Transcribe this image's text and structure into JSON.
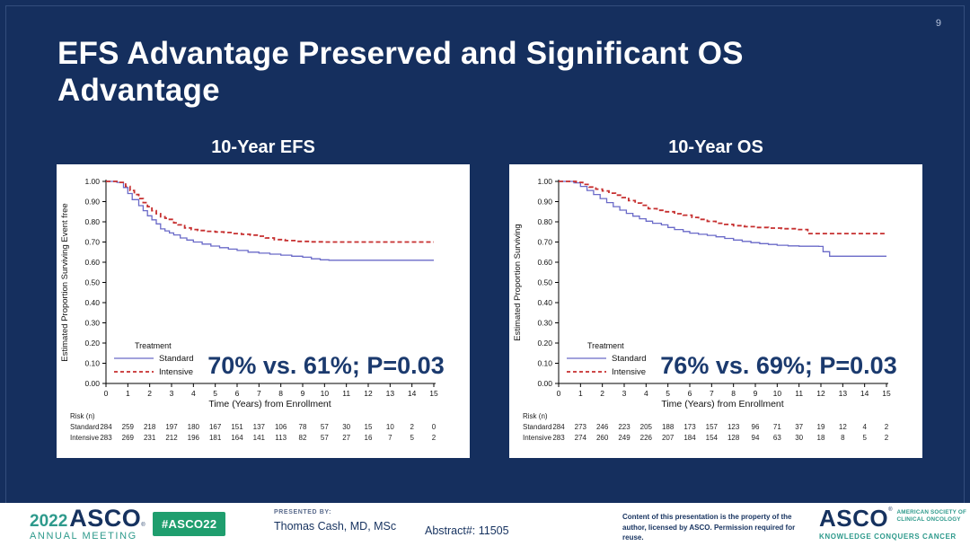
{
  "slide": {
    "title": "EFS Advantage Preserved and Significant OS Advantage",
    "page_number": "9"
  },
  "colors": {
    "background": "#152f5e",
    "navy_text": "#16325f",
    "annotation_navy": "#1b3a6e",
    "teal": "#2e9a8c",
    "badge_green": "#1f9e6e",
    "standard_blue": "#6a6ac8",
    "intensive_red": "#c62f2f"
  },
  "chart_data": [
    {
      "type": "line",
      "subtype": "kaplan-meier-step",
      "title": "10-Year EFS",
      "xlabel": "Time (Years) from Enrollment",
      "ylabel": "Estimated Proportion Surviving Event free",
      "xlim": [
        0,
        15
      ],
      "ylim": [
        0.0,
        1.0
      ],
      "xticks": [
        0,
        1,
        2,
        3,
        4,
        5,
        6,
        7,
        8,
        9,
        10,
        11,
        12,
        13,
        14,
        15
      ],
      "ytick_step": 0.1,
      "grid": false,
      "legend_title": "Treatment",
      "legend_position": "lower-left",
      "annotation": "70% vs. 61%; P=0.03",
      "series": [
        {
          "name": "Standard",
          "color": "#6a6ac8",
          "style": "solid",
          "points": [
            [
              0,
              1.0
            ],
            [
              0.5,
              0.995
            ],
            [
              0.8,
              0.97
            ],
            [
              1.0,
              0.94
            ],
            [
              1.2,
              0.91
            ],
            [
              1.5,
              0.88
            ],
            [
              1.7,
              0.855
            ],
            [
              1.9,
              0.83
            ],
            [
              2.1,
              0.81
            ],
            [
              2.3,
              0.79
            ],
            [
              2.5,
              0.765
            ],
            [
              2.7,
              0.755
            ],
            [
              2.9,
              0.745
            ],
            [
              3.1,
              0.735
            ],
            [
              3.4,
              0.72
            ],
            [
              3.7,
              0.71
            ],
            [
              4.0,
              0.7
            ],
            [
              4.4,
              0.69
            ],
            [
              4.8,
              0.68
            ],
            [
              5.2,
              0.672
            ],
            [
              5.6,
              0.665
            ],
            [
              6.0,
              0.658
            ],
            [
              6.5,
              0.65
            ],
            [
              7.0,
              0.645
            ],
            [
              7.5,
              0.64
            ],
            [
              8.0,
              0.635
            ],
            [
              8.5,
              0.63
            ],
            [
              9.0,
              0.625
            ],
            [
              9.4,
              0.617
            ],
            [
              9.8,
              0.612
            ],
            [
              10.2,
              0.61
            ],
            [
              15,
              0.61
            ]
          ]
        },
        {
          "name": "Intensive",
          "color": "#c62f2f",
          "style": "dashed",
          "points": [
            [
              0,
              1.0
            ],
            [
              0.6,
              0.995
            ],
            [
              0.9,
              0.975
            ],
            [
              1.1,
              0.955
            ],
            [
              1.3,
              0.935
            ],
            [
              1.5,
              0.915
            ],
            [
              1.7,
              0.895
            ],
            [
              1.9,
              0.875
            ],
            [
              2.1,
              0.855
            ],
            [
              2.3,
              0.84
            ],
            [
              2.5,
              0.825
            ],
            [
              2.7,
              0.818
            ],
            [
              2.9,
              0.812
            ],
            [
              3.1,
              0.795
            ],
            [
              3.3,
              0.785
            ],
            [
              3.6,
              0.77
            ],
            [
              3.9,
              0.762
            ],
            [
              4.2,
              0.757
            ],
            [
              4.6,
              0.753
            ],
            [
              5.0,
              0.75
            ],
            [
              5.4,
              0.747
            ],
            [
              5.8,
              0.742
            ],
            [
              6.2,
              0.738
            ],
            [
              6.6,
              0.734
            ],
            [
              7.0,
              0.729
            ],
            [
              7.3,
              0.72
            ],
            [
              7.7,
              0.712
            ],
            [
              8.2,
              0.707
            ],
            [
              8.8,
              0.703
            ],
            [
              9.4,
              0.701
            ],
            [
              10.0,
              0.7
            ],
            [
              15,
              0.7
            ]
          ]
        }
      ],
      "risk_table": {
        "label": "Risk (n)",
        "rows": [
          {
            "name": "Standard",
            "values": [
              284,
              259,
              218,
              197,
              180,
              167,
              151,
              137,
              106,
              78,
              57,
              30,
              15,
              10,
              2,
              0
            ]
          },
          {
            "name": "Intensive",
            "values": [
              283,
              269,
              231,
              212,
              196,
              181,
              164,
              141,
              113,
              82,
              57,
              27,
              16,
              7,
              5,
              2
            ]
          }
        ]
      }
    },
    {
      "type": "line",
      "subtype": "kaplan-meier-step",
      "title": "10-Year OS",
      "xlabel": "Time (Years) from Enrollment",
      "ylabel": "Estimated Proportion Surviving",
      "xlim": [
        0,
        15
      ],
      "ylim": [
        0.0,
        1.0
      ],
      "xticks": [
        0,
        1,
        2,
        3,
        4,
        5,
        6,
        7,
        8,
        9,
        10,
        11,
        12,
        13,
        14,
        15
      ],
      "ytick_step": 0.1,
      "grid": false,
      "legend_title": "Treatment",
      "legend_position": "lower-left",
      "annotation": "76% vs. 69%; P=0.03",
      "series": [
        {
          "name": "Standard",
          "color": "#6a6ac8",
          "style": "solid",
          "points": [
            [
              0,
              1.0
            ],
            [
              0.7,
              0.993
            ],
            [
              1.0,
              0.975
            ],
            [
              1.3,
              0.955
            ],
            [
              1.6,
              0.935
            ],
            [
              1.9,
              0.915
            ],
            [
              2.2,
              0.895
            ],
            [
              2.5,
              0.875
            ],
            [
              2.8,
              0.858
            ],
            [
              3.1,
              0.842
            ],
            [
              3.4,
              0.828
            ],
            [
              3.7,
              0.815
            ],
            [
              4.0,
              0.803
            ],
            [
              4.3,
              0.793
            ],
            [
              4.7,
              0.785
            ],
            [
              5.0,
              0.772
            ],
            [
              5.3,
              0.762
            ],
            [
              5.7,
              0.752
            ],
            [
              6.0,
              0.744
            ],
            [
              6.4,
              0.738
            ],
            [
              6.8,
              0.733
            ],
            [
              7.2,
              0.726
            ],
            [
              7.6,
              0.718
            ],
            [
              8.0,
              0.71
            ],
            [
              8.4,
              0.703
            ],
            [
              8.8,
              0.697
            ],
            [
              9.2,
              0.692
            ],
            [
              9.6,
              0.688
            ],
            [
              10.0,
              0.684
            ],
            [
              10.5,
              0.681
            ],
            [
              11.0,
              0.679
            ],
            [
              11.9,
              0.678
            ],
            [
              12.1,
              0.652
            ],
            [
              12.4,
              0.63
            ],
            [
              15,
              0.63
            ]
          ]
        },
        {
          "name": "Intensive",
          "color": "#c62f2f",
          "style": "dashed",
          "points": [
            [
              0,
              1.0
            ],
            [
              0.8,
              0.995
            ],
            [
              1.1,
              0.985
            ],
            [
              1.4,
              0.972
            ],
            [
              1.7,
              0.962
            ],
            [
              2.0,
              0.953
            ],
            [
              2.3,
              0.942
            ],
            [
              2.6,
              0.932
            ],
            [
              2.9,
              0.92
            ],
            [
              3.2,
              0.905
            ],
            [
              3.5,
              0.893
            ],
            [
              3.8,
              0.882
            ],
            [
              4.1,
              0.865
            ],
            [
              4.5,
              0.857
            ],
            [
              4.9,
              0.85
            ],
            [
              5.3,
              0.84
            ],
            [
              5.7,
              0.833
            ],
            [
              6.1,
              0.822
            ],
            [
              6.4,
              0.812
            ],
            [
              6.8,
              0.802
            ],
            [
              7.2,
              0.793
            ],
            [
              7.6,
              0.787
            ],
            [
              8.0,
              0.781
            ],
            [
              8.5,
              0.776
            ],
            [
              9.0,
              0.772
            ],
            [
              9.6,
              0.769
            ],
            [
              10.2,
              0.766
            ],
            [
              10.9,
              0.762
            ],
            [
              11.4,
              0.742
            ],
            [
              15,
              0.74
            ]
          ]
        }
      ],
      "risk_table": {
        "label": "Risk (n)",
        "rows": [
          {
            "name": "Standard",
            "values": [
              284,
              273,
              246,
              223,
              205,
              188,
              173,
              157,
              123,
              96,
              71,
              37,
              19,
              12,
              4,
              2
            ]
          },
          {
            "name": "Intensive",
            "values": [
              283,
              274,
              260,
              249,
              226,
              207,
              184,
              154,
              128,
              94,
              63,
              30,
              18,
              8,
              5,
              2
            ]
          }
        ]
      }
    }
  ],
  "footer": {
    "meeting_year": "2022",
    "meeting_org": "ASCO",
    "reg_mark": "®",
    "meeting_name": "ANNUAL MEETING",
    "hashtag": "#ASCO22",
    "presented_by_label": "PRESENTED BY:",
    "presenter": "Thomas Cash, MD, MSc",
    "abstract": "Abstract#: 11505",
    "reuse_notice": "Content of this presentation is the property of the author, licensed by ASCO. Permission required for reuse.",
    "asco_logo_text": "ASCO",
    "asco_society": "AMERICAN SOCIETY OF CLINICAL ONCOLOGY",
    "asco_tagline": "KNOWLEDGE CONQUERS CANCER"
  }
}
